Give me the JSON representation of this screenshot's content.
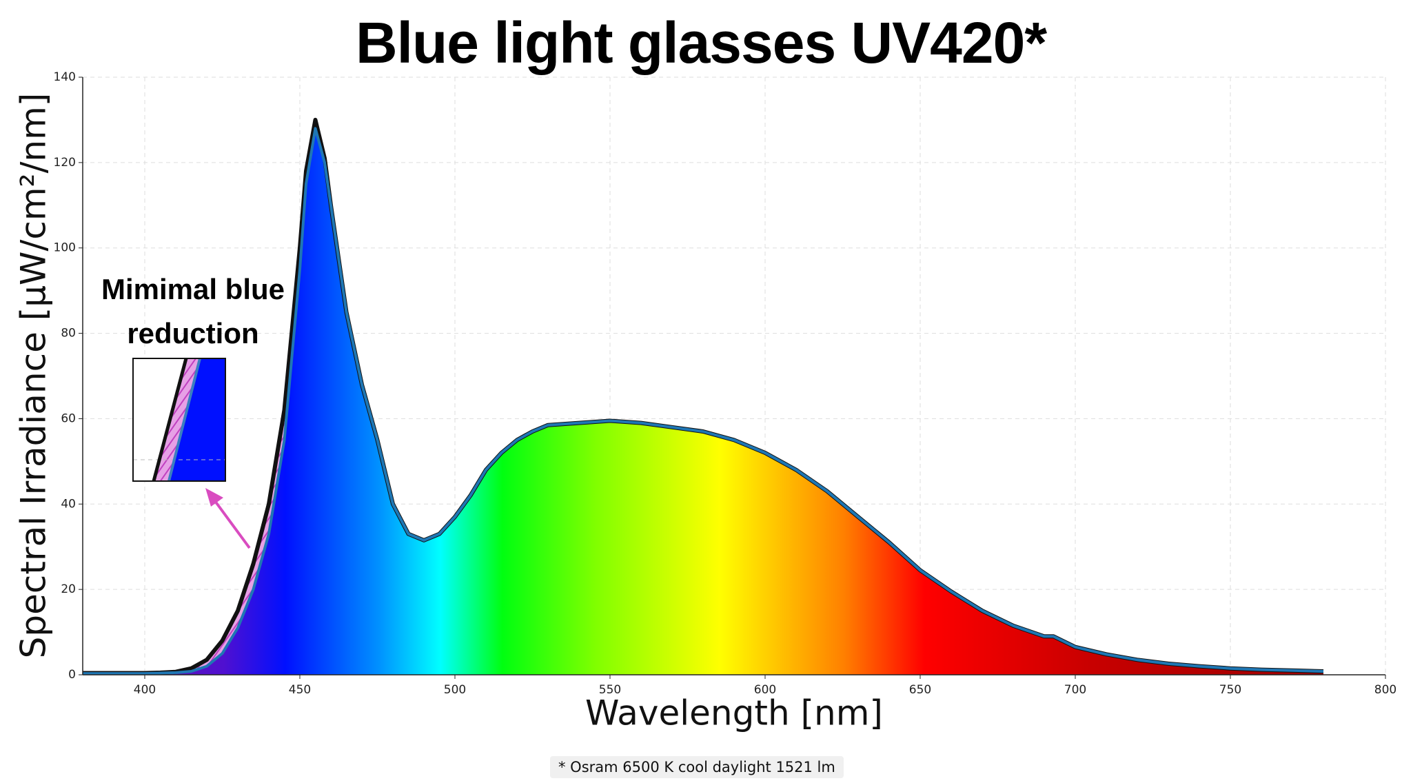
{
  "chart_data": {
    "type": "area",
    "title": "Blue light glasses UV420*",
    "xlabel": "Wavelength [nm]",
    "ylabel": "Spectral Irradiance [μW/cm²/nm]",
    "annotation": "Mimimal blue reduction",
    "footnote": "* Osram 6500 K cool daylight 1521 lm",
    "x": [
      380,
      390,
      400,
      405,
      410,
      415,
      420,
      425,
      430,
      435,
      440,
      445,
      450,
      452,
      455,
      458,
      460,
      465,
      470,
      475,
      480,
      485,
      490,
      495,
      500,
      505,
      510,
      515,
      520,
      525,
      530,
      540,
      550,
      560,
      570,
      580,
      590,
      600,
      610,
      620,
      630,
      640,
      650,
      660,
      670,
      680,
      690,
      693,
      700,
      710,
      720,
      730,
      740,
      750,
      760,
      770,
      780
    ],
    "series": [
      {
        "color": "#111111",
        "values": [
          0.4,
          0.4,
          0.4,
          0.5,
          0.7,
          1.5,
          3.5,
          8,
          15,
          26,
          40,
          62,
          100,
          118,
          130,
          121,
          110,
          85,
          68,
          55,
          40,
          33,
          31.5,
          33,
          37,
          42,
          48,
          52,
          55,
          57,
          58.5,
          59,
          59.5,
          59,
          58,
          57,
          55,
          52,
          48,
          43,
          37,
          31,
          24.5,
          19.5,
          15,
          11.5,
          9,
          9,
          6.5,
          4.8,
          3.5,
          2.6,
          2,
          1.5,
          1.2,
          1,
          0.8
        ]
      },
      {
        "color": "#1f77b4",
        "values": [
          0.3,
          0.3,
          0.3,
          0.4,
          0.5,
          0.8,
          2,
          5,
          11,
          20,
          33,
          55,
          95,
          115,
          128,
          120,
          110,
          85,
          68,
          55,
          40,
          33,
          31.5,
          33,
          37,
          42,
          48,
          52,
          55,
          57,
          58.5,
          59,
          59.5,
          59,
          58,
          57,
          55,
          52,
          48,
          43,
          37,
          31,
          24.5,
          19.5,
          15,
          11.5,
          9,
          9,
          6.5,
          4.8,
          3.5,
          2.6,
          2,
          1.5,
          1.2,
          1,
          0.8
        ]
      }
    ],
    "xlim": [
      380,
      800
    ],
    "ylim": [
      0,
      140
    ],
    "xticks": [
      400,
      450,
      500,
      550,
      600,
      650,
      700,
      750,
      800
    ],
    "yticks": [
      0,
      20,
      40,
      60,
      80,
      100,
      120,
      140
    ],
    "grid": true
  }
}
